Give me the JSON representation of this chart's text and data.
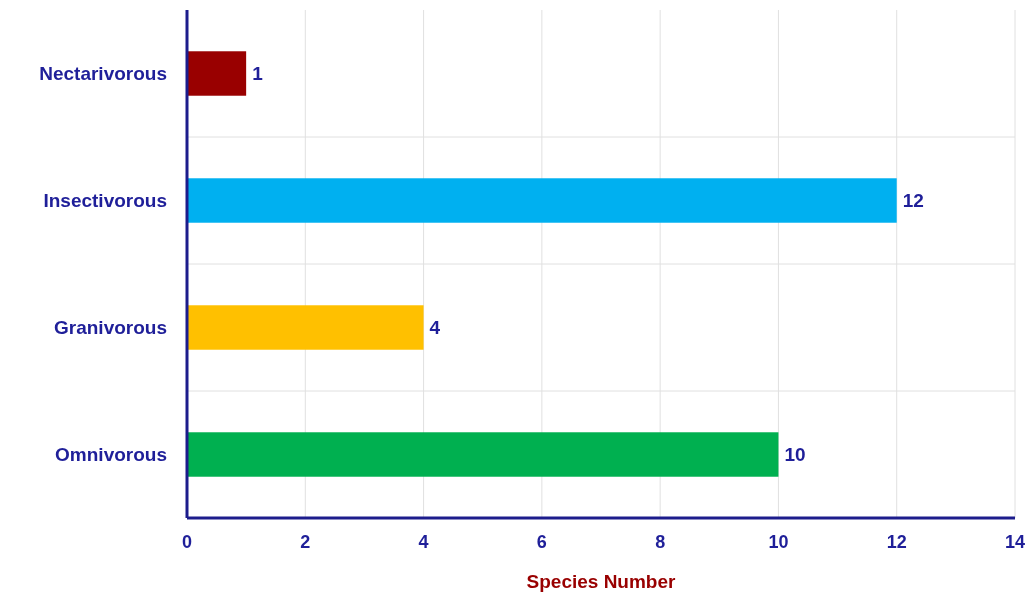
{
  "chart_data": {
    "type": "bar",
    "orientation": "horizontal",
    "xlabel": "Species Number",
    "categories": [
      "Nectarivorous",
      "Insectivorous",
      "Granivorous",
      "Omnivorous"
    ],
    "values": [
      1,
      12,
      4,
      10
    ],
    "colors": [
      "#990000",
      "#00b0f0",
      "#ffc000",
      "#00b050"
    ],
    "xlim": [
      0,
      14
    ],
    "xticks": [
      0,
      2,
      4,
      6,
      8,
      10,
      12,
      14
    ],
    "grid": true,
    "data_labels": true
  }
}
